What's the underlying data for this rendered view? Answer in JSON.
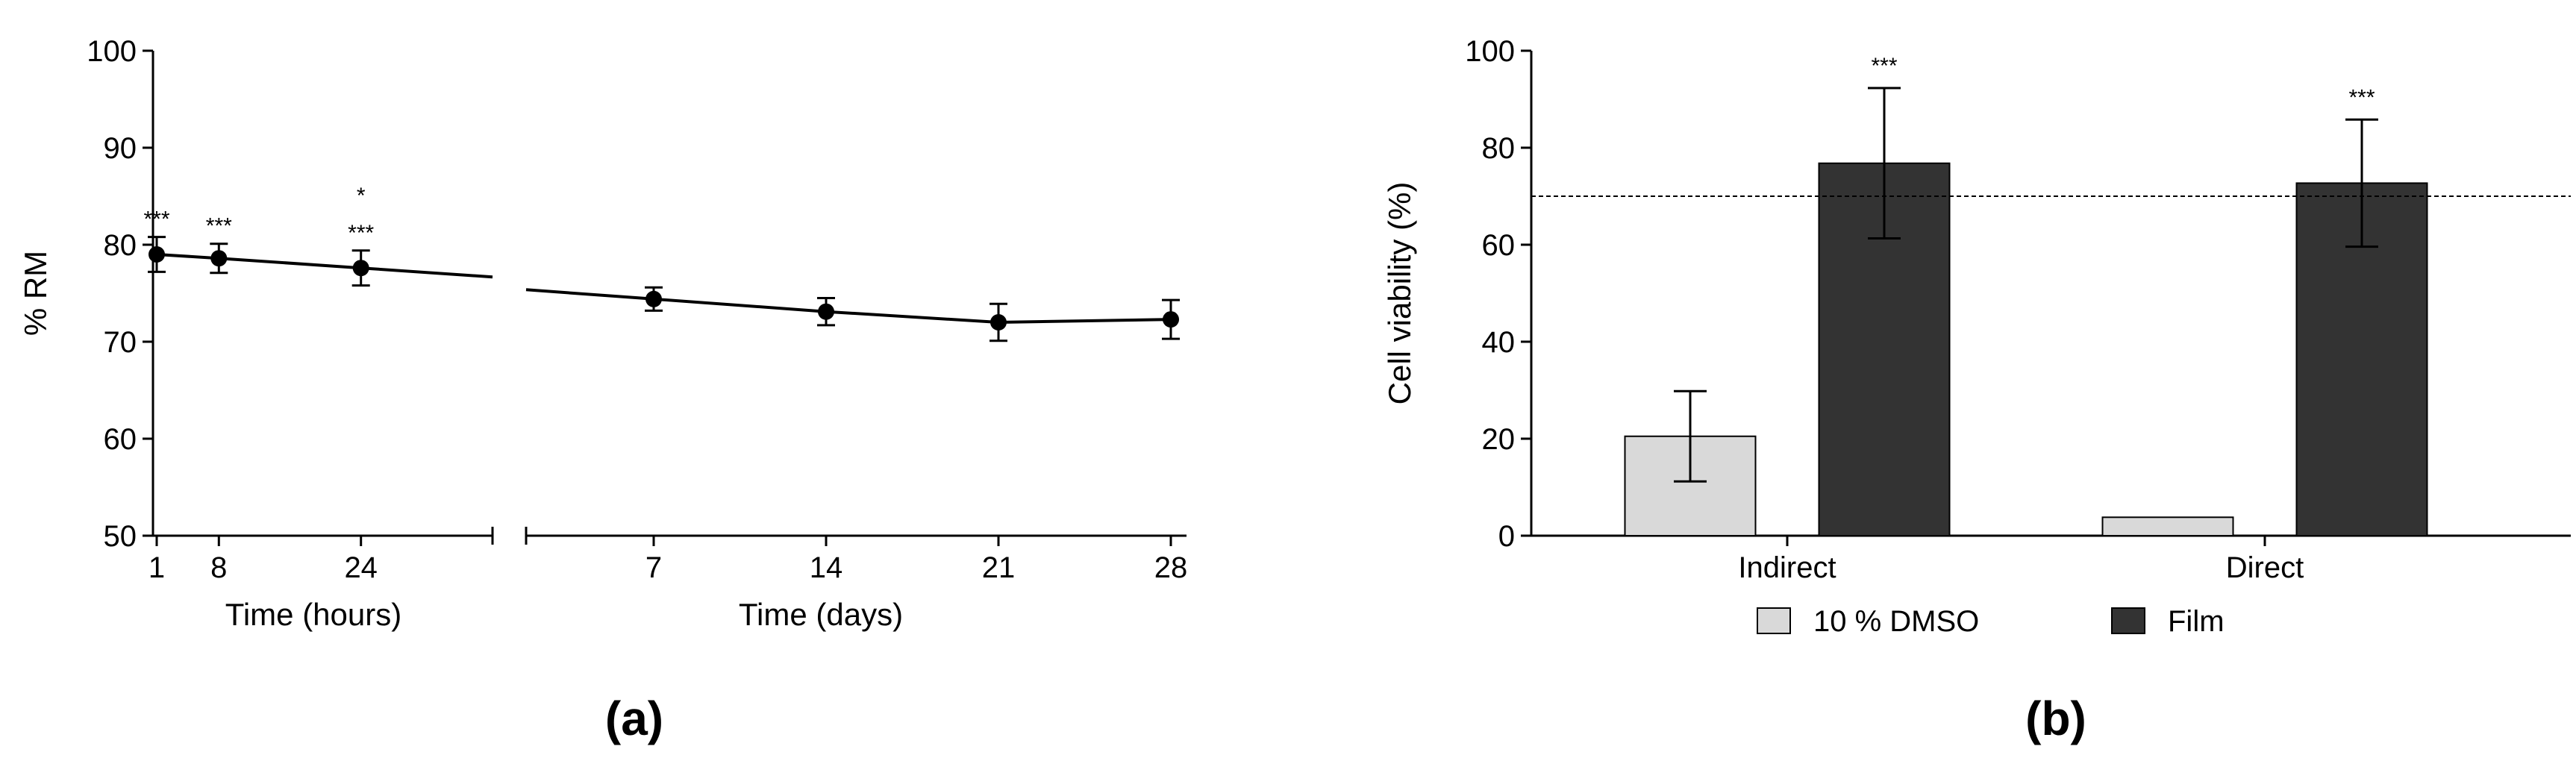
{
  "chart_data": [
    {
      "panel": "(a)",
      "type": "line",
      "ylabel": "% RM",
      "ylim": [
        50,
        100
      ],
      "yticks": [
        50,
        60,
        70,
        80,
        90,
        100
      ],
      "segments": [
        {
          "xlabel": "Time (hours)",
          "xticks": [
            1,
            8,
            24
          ],
          "points": [
            {
              "x": 1,
              "y": 79.0,
              "err": 1.8,
              "annotation": [
                "***"
              ]
            },
            {
              "x": 8,
              "y": 78.6,
              "err": 1.5,
              "annotation": [
                "***"
              ]
            },
            {
              "x": 24,
              "y": 77.6,
              "err": 1.8,
              "annotation": [
                "***",
                "*"
              ]
            }
          ]
        },
        {
          "xlabel": "Time (days)",
          "xticks": [
            7,
            14,
            21,
            28
          ],
          "points": [
            {
              "x": 7,
              "y": 74.4,
              "err": 1.2,
              "annotation": []
            },
            {
              "x": 14,
              "y": 73.1,
              "err": 1.4,
              "annotation": []
            },
            {
              "x": 21,
              "y": 72.0,
              "err": 1.9,
              "annotation": []
            },
            {
              "x": 28,
              "y": 72.3,
              "err": 2.0,
              "annotation": []
            }
          ]
        }
      ]
    },
    {
      "panel": "(b)",
      "type": "bar",
      "ylabel": "Cell viability (%)",
      "ylim": [
        0,
        100
      ],
      "yticks": [
        0,
        20,
        40,
        60,
        80,
        100
      ],
      "categories": [
        "Indirect",
        "Direct"
      ],
      "reference_line": 70,
      "legend_position": "bottom",
      "series": [
        {
          "name": "10 % DMSO",
          "color": "#d9d9d9",
          "values": [
            20.5,
            3.8
          ],
          "errors": [
            9.3,
            0
          ],
          "annotations": [
            "",
            ""
          ]
        },
        {
          "name": "Film",
          "color": "#333333",
          "values": [
            76.8,
            72.7
          ],
          "errors": [
            15.5,
            13.1
          ],
          "annotations": [
            "***",
            "***"
          ]
        }
      ]
    }
  ]
}
